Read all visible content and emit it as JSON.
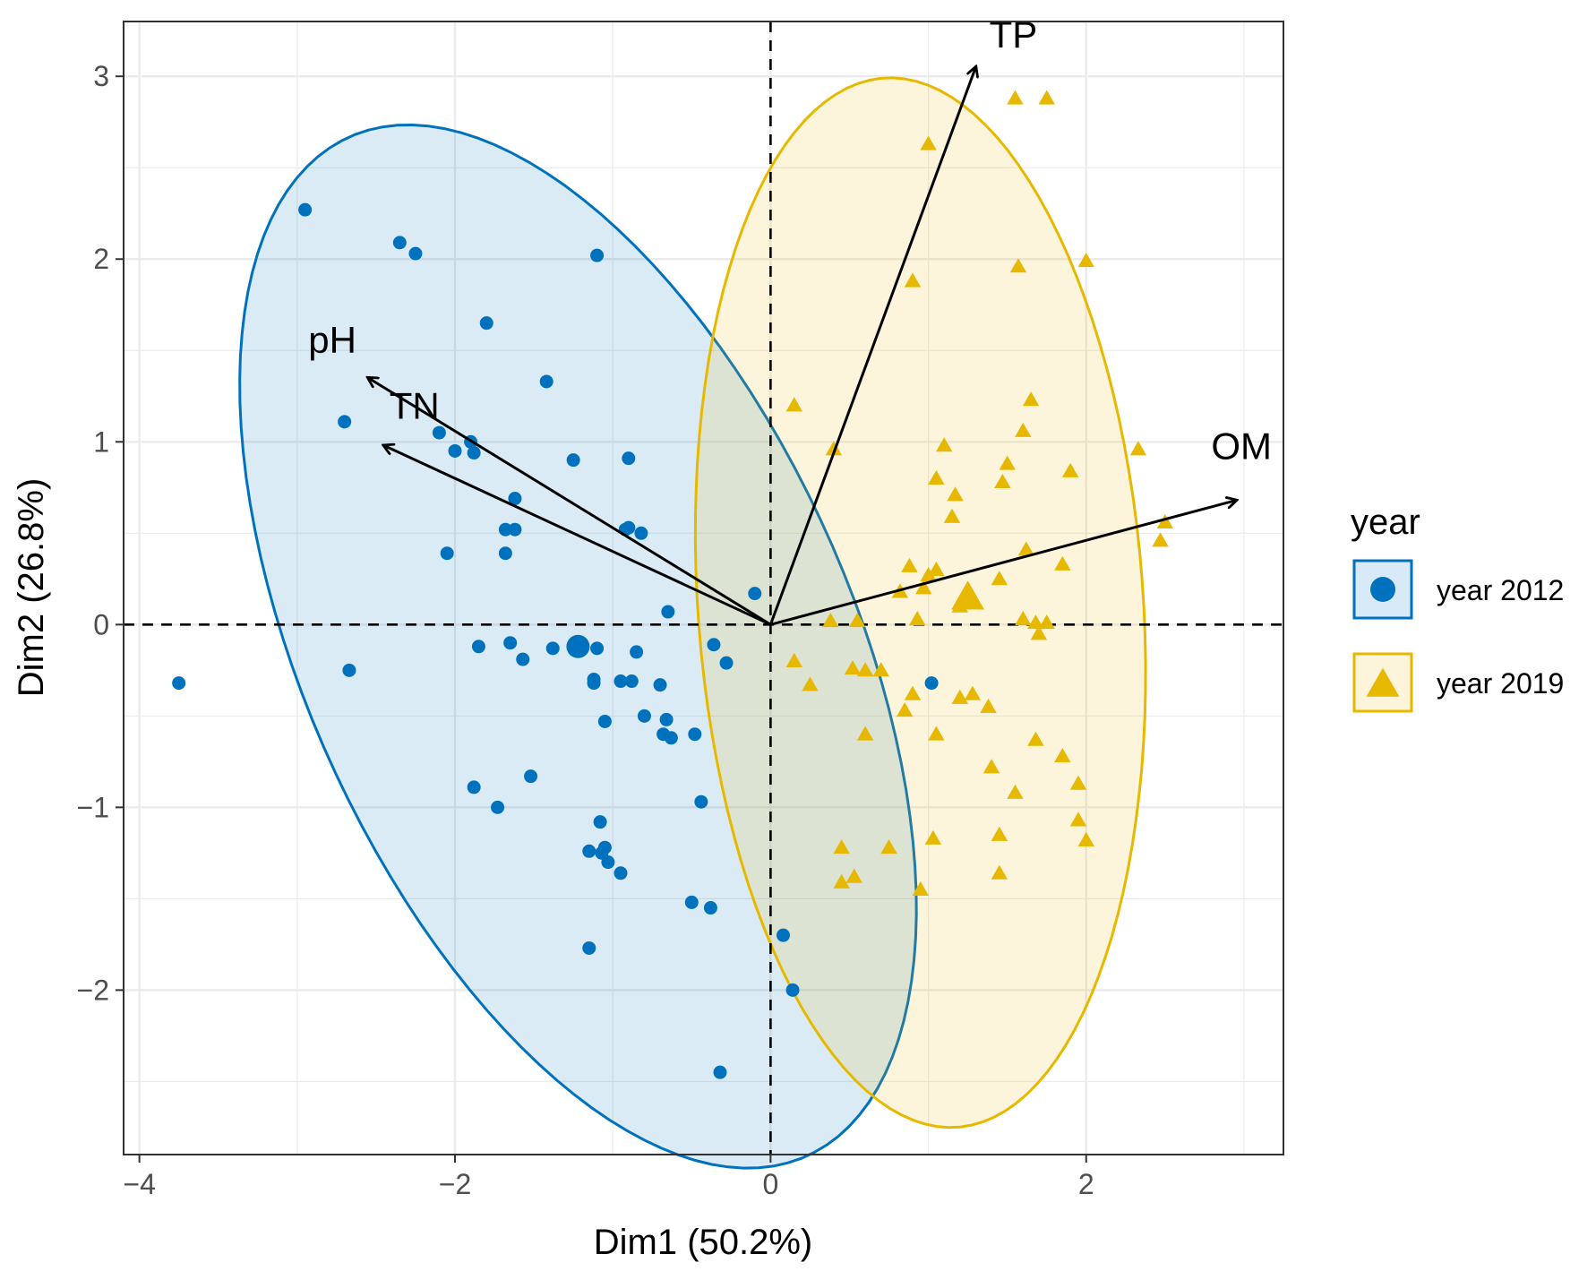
{
  "chart_data": {
    "type": "scatter",
    "subtype": "pca-biplot",
    "title": "",
    "xlabel": "Dim1 (50.2%)",
    "ylabel": "Dim2 (26.8%)",
    "xlim": [
      -4.1,
      3.25
    ],
    "ylim": [
      -2.9,
      3.3
    ],
    "x_ticks": [
      {
        "value": -4,
        "label": "−4"
      },
      {
        "value": -2,
        "label": "−2"
      },
      {
        "value": 0,
        "label": "0"
      },
      {
        "value": 2,
        "label": "2"
      }
    ],
    "y_ticks": [
      {
        "value": -2,
        "label": "−2"
      },
      {
        "value": -1,
        "label": "−1"
      },
      {
        "value": 0,
        "label": "0"
      },
      {
        "value": 1,
        "label": "1"
      },
      {
        "value": 2,
        "label": "2"
      },
      {
        "value": 3,
        "label": "3"
      }
    ],
    "grid": true,
    "legend": {
      "title": "year",
      "position": "right"
    },
    "series": [
      {
        "name": "year 2012",
        "marker": "circle",
        "color": "#0072BD",
        "fill": "#D8E9F7",
        "centroid": [
          -1.22,
          -0.12
        ],
        "ellipse": {
          "center": [
            -1.22,
            -0.12
          ],
          "semi_major": 3.15,
          "semi_minor": 1.68,
          "angle_deg": -60
        },
        "points": [
          [
            -3.75,
            -0.32
          ],
          [
            -2.95,
            2.27
          ],
          [
            -2.7,
            1.11
          ],
          [
            -2.67,
            -0.25
          ],
          [
            -2.35,
            2.09
          ],
          [
            -2.25,
            2.03
          ],
          [
            -2.1,
            1.05
          ],
          [
            -2.05,
            0.39
          ],
          [
            -2.0,
            0.95
          ],
          [
            -1.9,
            1.0
          ],
          [
            -1.88,
            0.94
          ],
          [
            -1.85,
            -0.12
          ],
          [
            -1.8,
            1.65
          ],
          [
            -1.88,
            -0.89
          ],
          [
            -1.73,
            -1.0
          ],
          [
            -1.68,
            0.52
          ],
          [
            -1.65,
            -0.1
          ],
          [
            -1.68,
            0.39
          ],
          [
            -1.62,
            0.52
          ],
          [
            -1.62,
            0.69
          ],
          [
            -1.57,
            -0.19
          ],
          [
            -1.52,
            -0.83
          ],
          [
            -1.42,
            1.33
          ],
          [
            -1.38,
            -0.13
          ],
          [
            -1.25,
            0.9
          ],
          [
            -1.15,
            -1.77
          ],
          [
            -1.1,
            2.02
          ],
          [
            -1.15,
            -1.24
          ],
          [
            -1.12,
            -0.3
          ],
          [
            -1.1,
            -0.13
          ],
          [
            -1.12,
            -0.32
          ],
          [
            -1.08,
            -1.08
          ],
          [
            -1.07,
            -1.25
          ],
          [
            -1.05,
            -0.53
          ],
          [
            -1.05,
            -1.22
          ],
          [
            -1.03,
            -1.3
          ],
          [
            -0.95,
            -0.31
          ],
          [
            -0.95,
            -1.36
          ],
          [
            -0.92,
            0.52
          ],
          [
            -0.9,
            0.91
          ],
          [
            -0.9,
            0.53
          ],
          [
            -0.88,
            -0.31
          ],
          [
            -0.85,
            -0.15
          ],
          [
            -0.82,
            0.5
          ],
          [
            -0.8,
            -0.5
          ],
          [
            -0.7,
            -0.33
          ],
          [
            -0.68,
            -0.6
          ],
          [
            -0.66,
            -0.52
          ],
          [
            -0.65,
            0.07
          ],
          [
            -0.63,
            -0.62
          ],
          [
            -0.5,
            -1.52
          ],
          [
            -0.48,
            -0.6
          ],
          [
            -0.44,
            -0.97
          ],
          [
            -0.38,
            -1.55
          ],
          [
            -0.36,
            -0.11
          ],
          [
            -0.32,
            -2.45
          ],
          [
            -0.28,
            -0.21
          ],
          [
            -0.1,
            0.17
          ],
          [
            0.08,
            -1.7
          ],
          [
            0.14,
            -2.0
          ],
          [
            1.02,
            -0.32
          ]
        ]
      },
      {
        "name": "year 2019",
        "marker": "triangle",
        "color": "#E7B800",
        "fill": "#FDF4DC",
        "centroid": [
          1.25,
          0.15
        ],
        "ellipse": {
          "center": [
            0.95,
            0.12
          ],
          "semi_major": 2.88,
          "semi_minor": 1.41,
          "angle_deg": 95
        },
        "points": [
          [
            1.0,
            2.63
          ],
          [
            1.55,
            2.88
          ],
          [
            1.75,
            2.88
          ],
          [
            1.57,
            1.96
          ],
          [
            2.0,
            1.99
          ],
          [
            0.9,
            1.88
          ],
          [
            0.15,
            1.2
          ],
          [
            1.65,
            1.23
          ],
          [
            1.6,
            1.06
          ],
          [
            0.4,
            0.96
          ],
          [
            1.1,
            0.98
          ],
          [
            2.33,
            0.96
          ],
          [
            1.5,
            0.88
          ],
          [
            1.05,
            0.8
          ],
          [
            1.9,
            0.84
          ],
          [
            1.17,
            0.71
          ],
          [
            1.47,
            0.78
          ],
          [
            1.15,
            0.59
          ],
          [
            2.5,
            0.56
          ],
          [
            2.47,
            0.46
          ],
          [
            1.62,
            0.41
          ],
          [
            0.88,
            0.32
          ],
          [
            1.05,
            0.3
          ],
          [
            1.0,
            0.27
          ],
          [
            1.85,
            0.33
          ],
          [
            0.82,
            0.18
          ],
          [
            0.97,
            0.2
          ],
          [
            1.45,
            0.25
          ],
          [
            0.38,
            0.02
          ],
          [
            0.55,
            0.02
          ],
          [
            0.93,
            0.03
          ],
          [
            1.2,
            0.1
          ],
          [
            1.6,
            0.03
          ],
          [
            1.68,
            0.01
          ],
          [
            1.7,
            -0.05
          ],
          [
            1.75,
            0.01
          ],
          [
            0.15,
            -0.2
          ],
          [
            0.25,
            -0.33
          ],
          [
            0.52,
            -0.24
          ],
          [
            0.6,
            -0.25
          ],
          [
            0.7,
            -0.25
          ],
          [
            0.9,
            -0.38
          ],
          [
            0.85,
            -0.47
          ],
          [
            1.2,
            -0.4
          ],
          [
            1.28,
            -0.38
          ],
          [
            1.38,
            -0.45
          ],
          [
            1.05,
            -0.6
          ],
          [
            0.6,
            -0.6
          ],
          [
            1.68,
            -0.63
          ],
          [
            1.85,
            -0.72
          ],
          [
            1.4,
            -0.78
          ],
          [
            1.55,
            -0.92
          ],
          [
            1.95,
            -0.87
          ],
          [
            1.95,
            -1.07
          ],
          [
            2.0,
            -1.18
          ],
          [
            1.45,
            -1.15
          ],
          [
            0.45,
            -1.22
          ],
          [
            0.75,
            -1.22
          ],
          [
            1.03,
            -1.17
          ],
          [
            1.45,
            -1.36
          ],
          [
            0.45,
            -1.41
          ],
          [
            0.53,
            -1.38
          ],
          [
            0.95,
            -1.45
          ]
        ]
      }
    ],
    "vectors": [
      {
        "name": "TP",
        "x": 1.3,
        "y": 3.05
      },
      {
        "name": "pH",
        "x": -2.55,
        "y": 1.35
      },
      {
        "name": "TN",
        "x": -2.45,
        "y": 0.98
      },
      {
        "name": "OM",
        "x": 2.95,
        "y": 0.68
      }
    ]
  }
}
